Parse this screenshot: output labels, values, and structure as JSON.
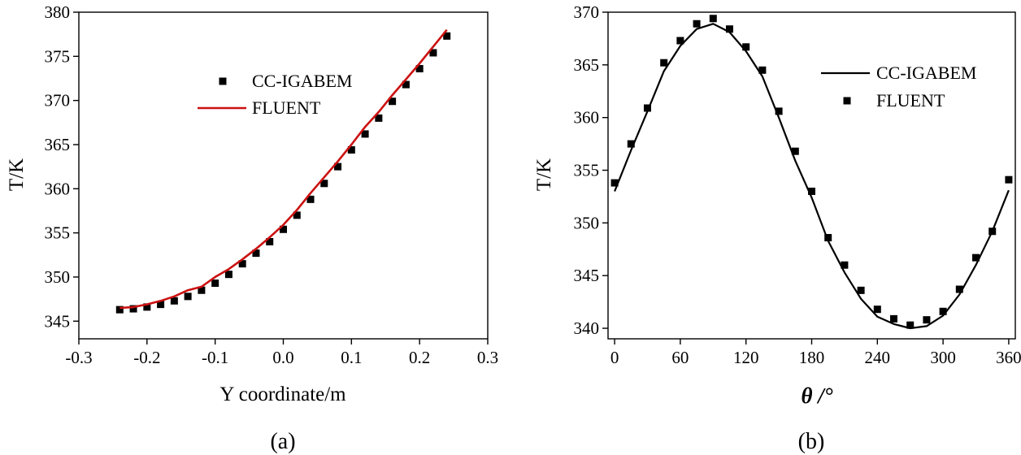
{
  "chart_data": [
    {
      "type": "line",
      "panel_label": "(a)",
      "xlabel": "Y coordinate/m",
      "ylabel": "T/K",
      "xlim": [
        -0.3,
        0.3
      ],
      "ylim": [
        343,
        380
      ],
      "xticks": [
        -0.3,
        -0.2,
        -0.1,
        0.0,
        0.1,
        0.2,
        0.3
      ],
      "xtick_labels": [
        "-0.3",
        "-0.2",
        "-0.1",
        "0.0",
        "0.1",
        "0.2",
        "0.3"
      ],
      "yticks": [
        345,
        350,
        355,
        360,
        365,
        370,
        375,
        380
      ],
      "ytick_labels": [
        "345",
        "350",
        "355",
        "360",
        "365",
        "370",
        "375",
        "380"
      ],
      "legend_position": "upper-center",
      "series": [
        {
          "name": "CC-IGABEM",
          "style": "marker",
          "color": "#000000",
          "x": [
            -0.24,
            -0.22,
            -0.2,
            -0.18,
            -0.16,
            -0.14,
            -0.12,
            -0.1,
            -0.08,
            -0.06,
            -0.04,
            -0.02,
            0.0,
            0.02,
            0.04,
            0.06,
            0.08,
            0.1,
            0.12,
            0.14,
            0.16,
            0.18,
            0.2,
            0.22,
            0.24
          ],
          "y": [
            346.3,
            346.4,
            346.6,
            346.9,
            347.3,
            347.8,
            348.5,
            349.3,
            350.3,
            351.5,
            352.7,
            354.0,
            355.4,
            357.0,
            358.8,
            360.6,
            362.5,
            364.4,
            366.2,
            368.0,
            369.9,
            371.8,
            373.6,
            375.4,
            377.3
          ]
        },
        {
          "name": "FLUENT",
          "style": "line",
          "color": "#cc1111",
          "x": [
            -0.24,
            -0.22,
            -0.2,
            -0.18,
            -0.16,
            -0.14,
            -0.12,
            -0.1,
            -0.08,
            -0.06,
            -0.04,
            -0.02,
            0.0,
            0.02,
            0.04,
            0.06,
            0.08,
            0.1,
            0.12,
            0.14,
            0.16,
            0.18,
            0.2,
            0.22,
            0.24
          ],
          "y": [
            346.5,
            346.6,
            346.9,
            347.3,
            347.8,
            348.5,
            348.9,
            350.0,
            350.9,
            352.0,
            353.2,
            354.5,
            355.9,
            357.6,
            359.5,
            361.3,
            363.1,
            365.0,
            367.0,
            368.7,
            370.6,
            372.4,
            374.2,
            376.1,
            378.0
          ]
        }
      ]
    },
    {
      "type": "line",
      "panel_label": "(b)",
      "xlabel": "θ /°",
      "ylabel": "T/K",
      "xlim": [
        -6,
        366
      ],
      "ylim": [
        339,
        370
      ],
      "xticks": [
        0,
        60,
        120,
        180,
        240,
        300,
        360
      ],
      "xtick_labels": [
        "0",
        "60",
        "120",
        "180",
        "240",
        "300",
        "360"
      ],
      "yticks": [
        340,
        345,
        350,
        355,
        360,
        365,
        370
      ],
      "ytick_labels": [
        "340",
        "345",
        "350",
        "355",
        "360",
        "365",
        "370"
      ],
      "legend_position": "upper-right",
      "series": [
        {
          "name": "CC-IGABEM",
          "style": "line",
          "color": "#000000",
          "x": [
            0,
            15,
            30,
            45,
            60,
            75,
            90,
            105,
            120,
            135,
            150,
            165,
            180,
            195,
            210,
            225,
            240,
            255,
            270,
            285,
            300,
            315,
            330,
            345,
            360
          ],
          "y": [
            353.0,
            356.9,
            360.6,
            364.4,
            366.8,
            368.4,
            368.9,
            368.1,
            366.3,
            363.9,
            360.0,
            355.9,
            352.4,
            348.3,
            345.3,
            342.8,
            341.1,
            340.4,
            340.0,
            340.2,
            341.2,
            343.2,
            346.0,
            349.2,
            353.1
          ]
        },
        {
          "name": "FLUENT",
          "style": "marker",
          "color": "#000000",
          "x": [
            0,
            15,
            30,
            45,
            60,
            75,
            90,
            105,
            120,
            135,
            150,
            165,
            180,
            195,
            210,
            225,
            240,
            255,
            270,
            285,
            300,
            315,
            330,
            345,
            360
          ],
          "y": [
            353.8,
            357.5,
            360.9,
            365.2,
            367.3,
            368.9,
            369.4,
            368.4,
            366.7,
            364.5,
            360.6,
            356.8,
            353.0,
            348.6,
            346.0,
            343.6,
            341.8,
            340.9,
            340.3,
            340.8,
            341.6,
            343.7,
            346.7,
            349.2,
            354.1
          ]
        }
      ]
    }
  ]
}
